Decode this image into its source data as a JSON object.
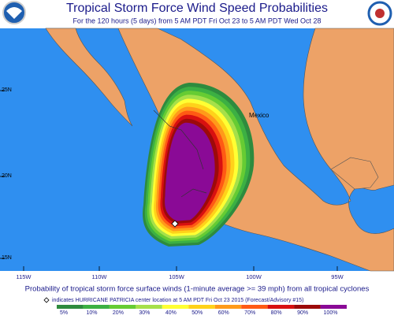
{
  "header": {
    "title": "Tropical Storm Force Wind Speed Probabilities",
    "subtitle": "For the 120 hours (5 days) from 5 AM PDT Fri Oct 23 to 5 AM PDT Wed Oct 28"
  },
  "map": {
    "place_label": "Mexico",
    "lat_labels": [
      "25N",
      "20N",
      "15N"
    ],
    "lon_labels": [
      "115W",
      "110W",
      "105W",
      "100W",
      "95W"
    ]
  },
  "footer": {
    "caption": "Probability of tropical storm force surface winds (1-minute average >= 39 mph) from all tropical cyclones",
    "note": "indicates HURRICANE PATRICIA center location at 5 AM PDT Fri Oct 23 2015 (Forecast/Advisory #15)",
    "scale": [
      {
        "label": "5%",
        "color": "#2e8b3e"
      },
      {
        "label": "10%",
        "color": "#3cb043"
      },
      {
        "label": "20%",
        "color": "#66cc33"
      },
      {
        "label": "30%",
        "color": "#a6e04a"
      },
      {
        "label": "40%",
        "color": "#ffff33"
      },
      {
        "label": "50%",
        "color": "#ffd21a"
      },
      {
        "label": "60%",
        "color": "#ff9a1a"
      },
      {
        "label": "70%",
        "color": "#ff5a14"
      },
      {
        "label": "80%",
        "color": "#d81010"
      },
      {
        "label": "90%",
        "color": "#9c0a0a"
      },
      {
        "label": "100%",
        "color": "#8a0a96"
      }
    ]
  }
}
